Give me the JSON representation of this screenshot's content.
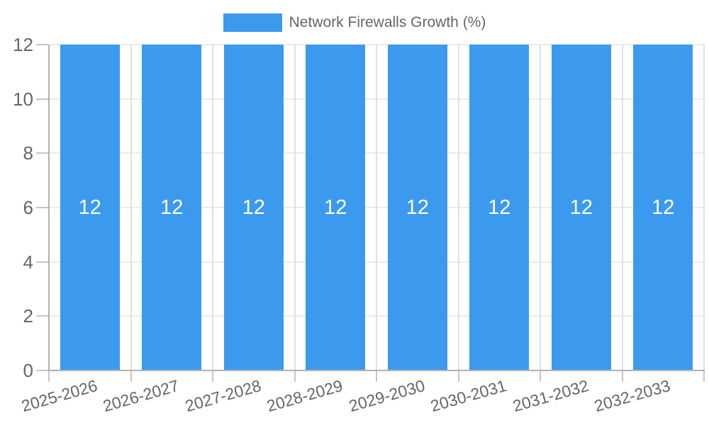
{
  "legend": {
    "label": "Network Firewalls Growth (%)"
  },
  "chart_data": {
    "type": "bar",
    "title": "",
    "xlabel": "",
    "ylabel": "",
    "legend_position": "top",
    "categories": [
      "2025-2026",
      "2026-2027",
      "2027-2028",
      "2028-2029",
      "2029-2030",
      "2030-2031",
      "2031-2032",
      "2032-2033"
    ],
    "series": [
      {
        "name": "Network Firewalls Growth (%)",
        "values": [
          12,
          12,
          12,
          12,
          12,
          12,
          12,
          12
        ]
      }
    ],
    "value_labels_shown": true,
    "value_labels": [
      "12",
      "12",
      "12",
      "12",
      "12",
      "12",
      "12",
      "12"
    ],
    "ylim": [
      0,
      12
    ],
    "yticks": [
      0,
      2,
      4,
      6,
      8,
      10,
      12
    ],
    "grid": true
  },
  "colors": {
    "bar": "#3B9AEE",
    "bar_value_label": "#FFFFFF",
    "background": "#FFFFFF",
    "axis_line": "#B2B2B2",
    "tick_mark": "#C6C6C6",
    "gridline_horizontal": "#EBEBEB",
    "gridline_vertical": "#E0E0E0",
    "tick_label_text": "#666666",
    "legend_text": "#666666"
  }
}
